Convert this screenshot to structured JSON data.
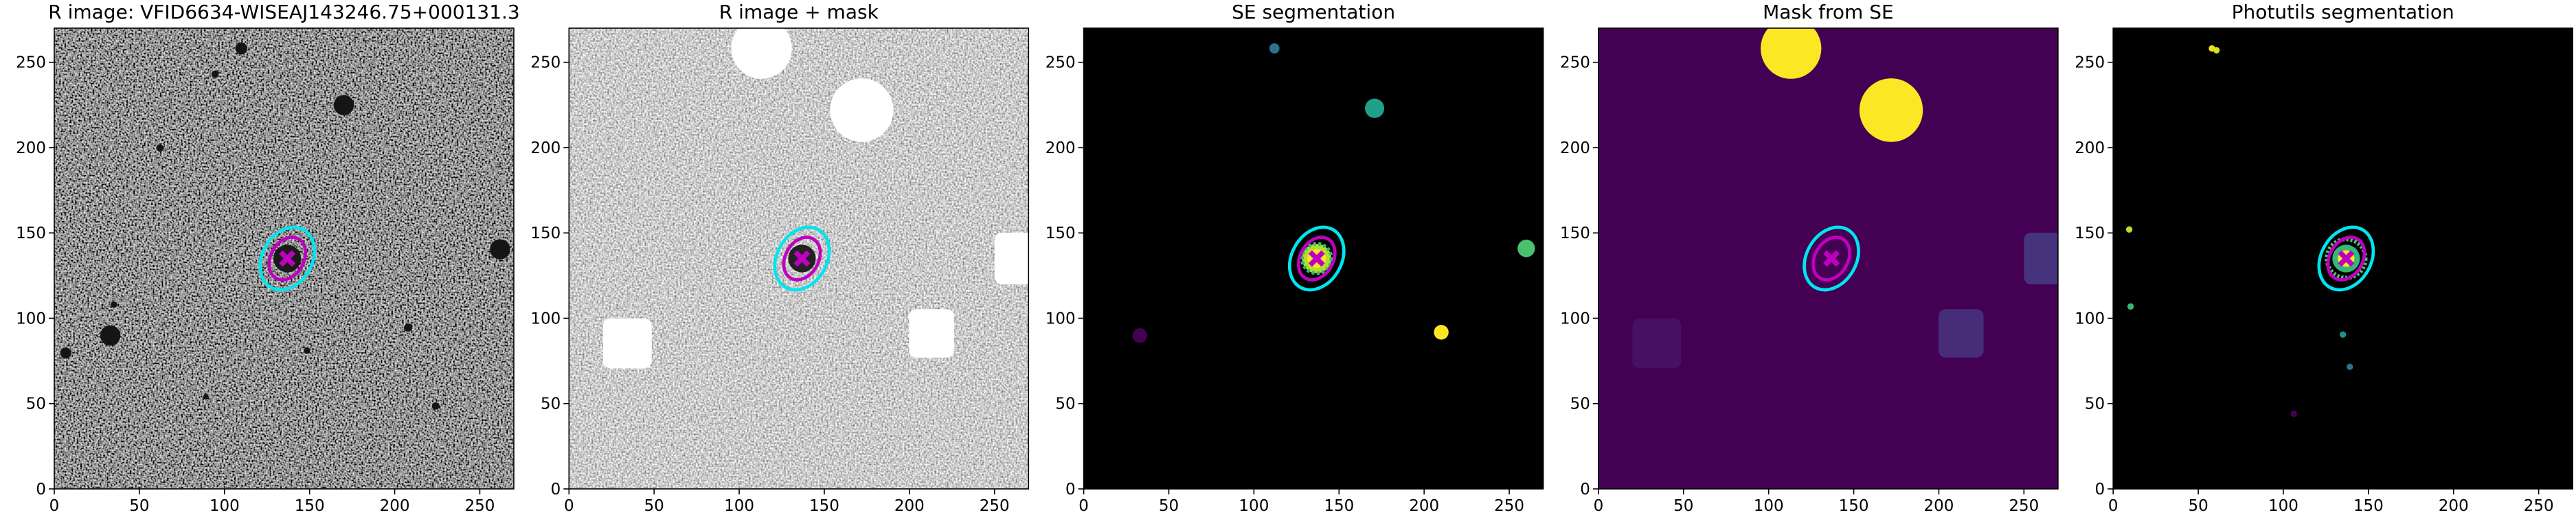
{
  "chart_data": [
    {
      "type": "image",
      "title": "R image: VFID6634-WISEAJ143246.75+000131.3",
      "xlim": [
        0,
        270
      ],
      "ylim": [
        0,
        270
      ],
      "xticks": [
        0,
        50,
        100,
        150,
        200,
        250
      ],
      "yticks": [
        0,
        50,
        100,
        150,
        200,
        250
      ]
    },
    {
      "type": "image",
      "title": "R image + mask",
      "xlim": [
        0,
        270
      ],
      "ylim": [
        0,
        270
      ],
      "xticks": [
        0,
        50,
        100,
        150,
        200,
        250
      ],
      "yticks": [
        0,
        50,
        100,
        150,
        200,
        250
      ]
    },
    {
      "type": "image",
      "title": "SE segmentation",
      "xlim": [
        0,
        270
      ],
      "ylim": [
        0,
        270
      ],
      "xticks": [
        0,
        50,
        100,
        150,
        200,
        250
      ],
      "yticks": [
        0,
        50,
        100,
        150,
        200,
        250
      ]
    },
    {
      "type": "image",
      "title": "Mask from SE",
      "xlim": [
        0,
        270
      ],
      "ylim": [
        0,
        270
      ],
      "xticks": [
        0,
        50,
        100,
        150,
        200,
        250
      ],
      "yticks": [
        0,
        50,
        100,
        150,
        200,
        250
      ]
    },
    {
      "type": "image",
      "title": "Photutils segmentation",
      "xlim": [
        0,
        270
      ],
      "ylim": [
        0,
        270
      ],
      "xticks": [
        0,
        50,
        100,
        150,
        200,
        250
      ],
      "yticks": [
        0,
        50,
        100,
        150,
        200,
        250
      ]
    }
  ]
}
